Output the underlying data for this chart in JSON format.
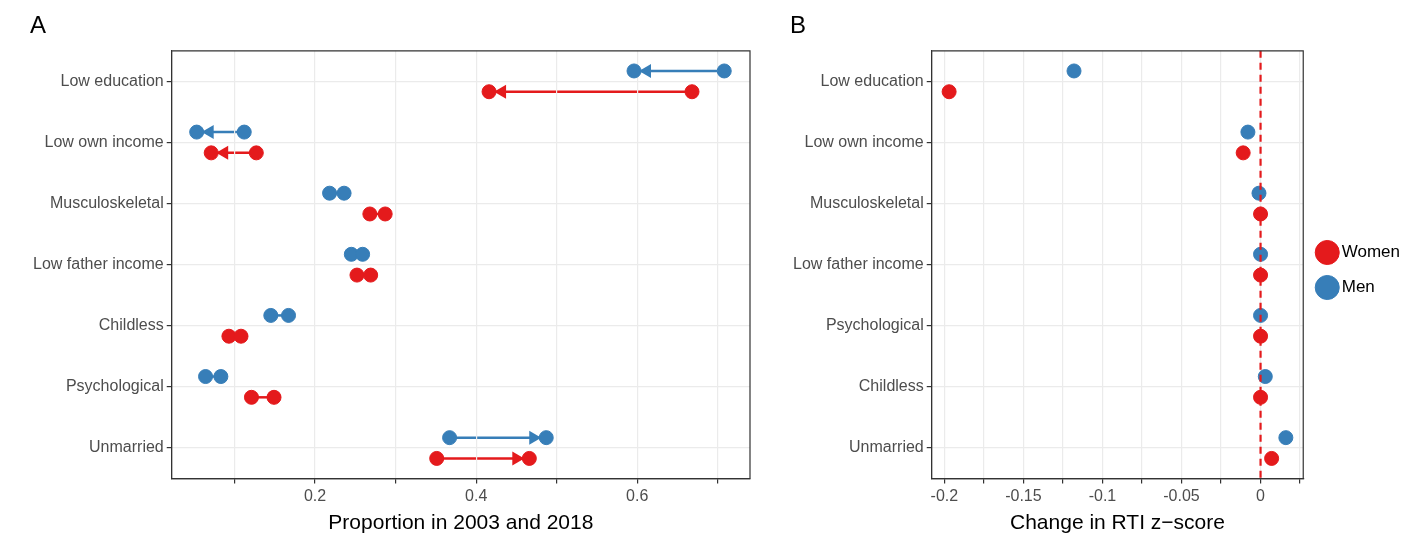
{
  "chart_data": [
    {
      "type": "scatter",
      "title": "A",
      "xlabel": "Proportion in 2003 and 2018",
      "orientation": "horizontal",
      "grid": true,
      "marker": "circle",
      "categories": [
        "Low education",
        "Low own income",
        "Musculoskeletal",
        "Low father income",
        "Childless",
        "Psychological",
        "Unmarried"
      ],
      "series": [
        {
          "color": "#e41a1c",
          "values": [
            0.668,
            0.127,
            0.287,
            0.269,
            0.108,
            0.121,
            0.351
          ]
        },
        {
          "color": "#e41a1c",
          "values": [
            0.416,
            0.071,
            0.268,
            0.252,
            0.093,
            0.149,
            0.466
          ]
        },
        {
          "color": "#377eb8",
          "values": [
            0.708,
            0.112,
            0.236,
            0.259,
            0.145,
            0.064,
            0.367
          ]
        },
        {
          "color": "#377eb8",
          "values": [
            0.596,
            0.053,
            0.218,
            0.245,
            0.167,
            0.083,
            0.487
          ]
        }
      ],
      "xlim": [
        0.022,
        0.74
      ],
      "xticks": [
        {
          "value": 0.1,
          "label": null
        },
        0.2,
        {
          "value": 0.3,
          "label": null
        },
        0.4,
        {
          "value": 0.5,
          "label": null
        },
        0.6,
        {
          "value": 0.7,
          "label": null
        }
      ]
    },
    {
      "type": "scatter",
      "title": "B",
      "xlabel": "Change in RTI z−score",
      "orientation": "horizontal",
      "grid": true,
      "legend": "right",
      "marker": "circle",
      "categories": [
        "Low education",
        "Low own income",
        "Musculoskeletal",
        "Low father income",
        "Psychological",
        "Childless",
        "Unmarried"
      ],
      "series": [
        {
          "name": "Women",
          "color": "#e41a1c",
          "values": [
            -0.197,
            -0.011,
            0,
            0,
            0,
            0,
            0.007
          ]
        },
        {
          "name": "Men",
          "color": "#377eb8",
          "values": [
            -0.118,
            -0.008,
            -0.001,
            0,
            0,
            0.003,
            0.016
          ]
        }
      ],
      "xlim": [
        -0.208,
        0.027
      ],
      "xticks": [
        -0.2,
        {
          "value": -0.175,
          "label": null
        },
        -0.15,
        {
          "value": -0.125,
          "label": null
        },
        -0.1,
        {
          "value": -0.075,
          "label": null
        },
        -0.05,
        {
          "value": -0.025,
          "label": null
        },
        0,
        {
          "value": 0.025,
          "label": null
        }
      ],
      "ref_lines": [
        {
          "axis": "x",
          "value": 0,
          "color": "#e41a1c",
          "line_style": "dashed"
        }
      ]
    }
  ]
}
